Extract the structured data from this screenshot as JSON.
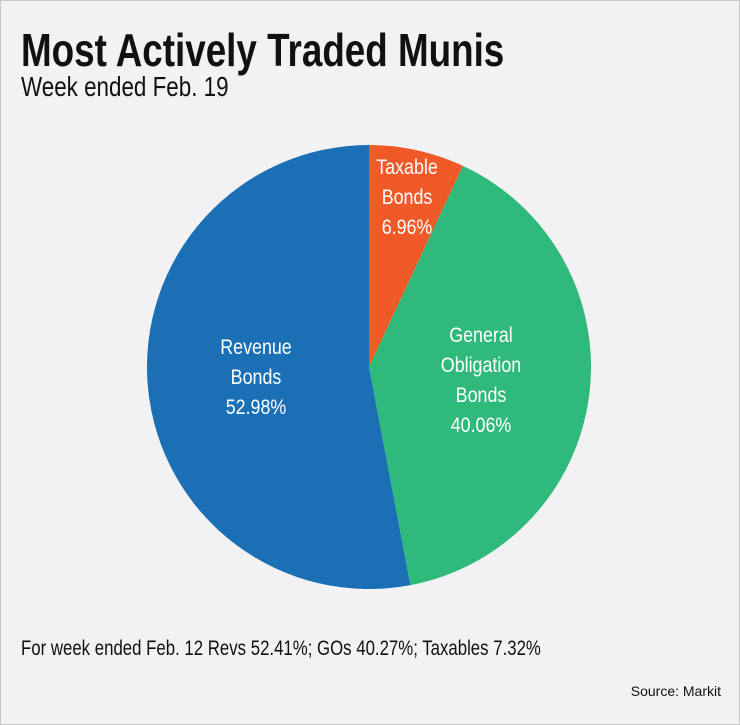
{
  "chart_data": {
    "type": "pie",
    "title": "Most Actively Traded Munis",
    "subtitle": "Week ended Feb. 19",
    "categories": [
      "Taxable Bonds",
      "General Obligation Bonds",
      "Revenue Bonds"
    ],
    "values": [
      6.96,
      40.06,
      52.98
    ],
    "value_labels": [
      "6.96%",
      "40.06%",
      "52.98%"
    ],
    "colors": [
      "#f05a28",
      "#2fb97a",
      "#1a6fb5"
    ],
    "note": "For week ended Feb. 12 Revs 52.41%; GOs 40.27%; Taxables 7.32%",
    "source": "Source: Markit"
  }
}
